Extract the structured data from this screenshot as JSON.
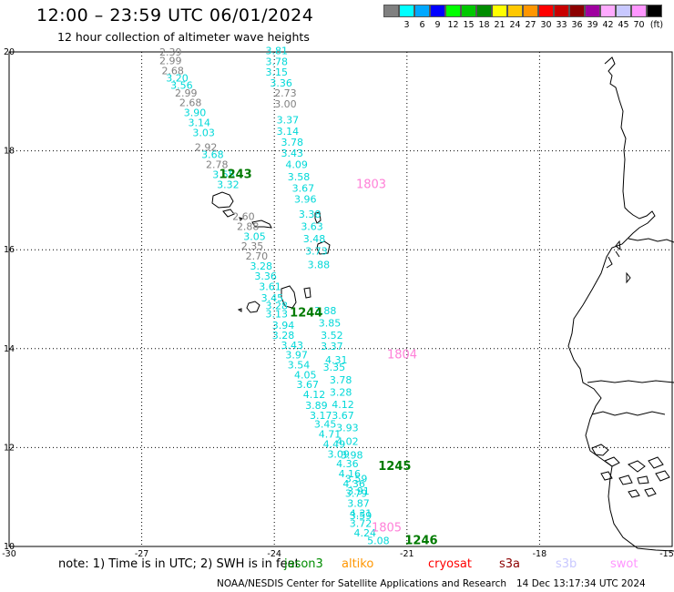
{
  "header": {
    "title": "12:00 – 23:59 UTC 06/01/2024",
    "subtitle": "12 hour collection of altimeter wave heights"
  },
  "legend": {
    "colors": [
      "#808080",
      "#00ffff",
      "#00a8ff",
      "#0000ff",
      "#00ff00",
      "#00c800",
      "#008c00",
      "#ffff00",
      "#ffc800",
      "#ff9600",
      "#ff0000",
      "#c80000",
      "#8c0000",
      "#a000a0",
      "#ffaaff",
      "#c8c8ff",
      "#ff96ff",
      "#000000"
    ],
    "labels": [
      "",
      "3",
      "6",
      "9",
      "12",
      "15",
      "18",
      "21",
      "24",
      "27",
      "30",
      "33",
      "36",
      "39",
      "42",
      "45",
      "70",
      "(ft)"
    ]
  },
  "axes": {
    "x_ticks": [
      "-30",
      "-27",
      "-24",
      "-21",
      "-18",
      "-15"
    ],
    "y_ticks": [
      "10",
      "12",
      "14",
      "16",
      "18",
      "20"
    ]
  },
  "tracks": [
    {
      "color": "#808080",
      "points": [
        {
          "lon": -26.6,
          "lat": 19.93,
          "v": "2.39"
        },
        {
          "lon": -26.6,
          "lat": 19.75,
          "v": "2.99"
        },
        {
          "lon": -26.55,
          "lat": 19.55,
          "v": "2.68"
        },
        {
          "lon": -26.25,
          "lat": 19.1,
          "v": "2.99"
        },
        {
          "lon": -26.15,
          "lat": 18.9,
          "v": "2.68"
        },
        {
          "lon": -25.8,
          "lat": 18.0,
          "v": "2.92"
        },
        {
          "lon": -25.55,
          "lat": 17.65,
          "v": "2.78"
        },
        {
          "lon": -24.95,
          "lat": 16.6,
          "v": "2.60"
        },
        {
          "lon": -24.85,
          "lat": 16.4,
          "v": "2.88"
        },
        {
          "lon": -24.75,
          "lat": 16.0,
          "v": "2.35"
        },
        {
          "lon": -24.65,
          "lat": 15.8,
          "v": "2.70"
        },
        {
          "lon": -24.0,
          "lat": 19.1,
          "v": "2.73"
        },
        {
          "lon": -24.0,
          "lat": 18.88,
          "v": "3.00"
        }
      ]
    },
    {
      "color": "#00d8d8",
      "points": [
        {
          "lon": -26.45,
          "lat": 19.4,
          "v": "3.20"
        },
        {
          "lon": -26.35,
          "lat": 19.25,
          "v": "3.56"
        },
        {
          "lon": -26.05,
          "lat": 18.7,
          "v": "3.90"
        },
        {
          "lon": -25.95,
          "lat": 18.5,
          "v": "3.14"
        },
        {
          "lon": -25.85,
          "lat": 18.3,
          "v": "3.03"
        },
        {
          "lon": -25.65,
          "lat": 17.85,
          "v": "3.68"
        },
        {
          "lon": -25.4,
          "lat": 17.45,
          "v": "3.55"
        },
        {
          "lon": -25.3,
          "lat": 17.25,
          "v": "3.32"
        },
        {
          "lon": -24.7,
          "lat": 16.2,
          "v": "3.05"
        },
        {
          "lon": -24.55,
          "lat": 15.6,
          "v": "3.28"
        },
        {
          "lon": -24.45,
          "lat": 15.4,
          "v": "3.36"
        },
        {
          "lon": -24.35,
          "lat": 15.18,
          "v": "3.61"
        },
        {
          "lon": -24.3,
          "lat": 14.95,
          "v": "3.45"
        },
        {
          "lon": -24.2,
          "lat": 14.8,
          "v": "3.28"
        },
        {
          "lon": -24.2,
          "lat": 14.63,
          "v": "3.13"
        },
        {
          "lon": -24.05,
          "lat": 14.4,
          "v": "3.94"
        },
        {
          "lon": -24.05,
          "lat": 14.2,
          "v": "3.28"
        },
        {
          "lon": -23.85,
          "lat": 14.0,
          "v": "3.43"
        },
        {
          "lon": -23.75,
          "lat": 13.8,
          "v": "3.97"
        },
        {
          "lon": -23.7,
          "lat": 13.6,
          "v": "3.54"
        },
        {
          "lon": -23.55,
          "lat": 13.4,
          "v": "4.05"
        },
        {
          "lon": -23.5,
          "lat": 13.2,
          "v": "3.67"
        },
        {
          "lon": -23.35,
          "lat": 13.0,
          "v": "4.12"
        },
        {
          "lon": -23.3,
          "lat": 12.78,
          "v": "3.89"
        },
        {
          "lon": -23.2,
          "lat": 12.58,
          "v": "3.17"
        },
        {
          "lon": -23.1,
          "lat": 12.4,
          "v": "3.45"
        },
        {
          "lon": -23.0,
          "lat": 12.2,
          "v": "4.71"
        },
        {
          "lon": -22.9,
          "lat": 12.0,
          "v": "4.49"
        },
        {
          "lon": -22.8,
          "lat": 11.8,
          "v": "3.09"
        },
        {
          "lon": -22.6,
          "lat": 11.6,
          "v": "4.36"
        },
        {
          "lon": -22.55,
          "lat": 11.4,
          "v": "4.16"
        },
        {
          "lon": -22.45,
          "lat": 11.2,
          "v": "4.36"
        },
        {
          "lon": -22.4,
          "lat": 11.0,
          "v": "3.79"
        },
        {
          "lon": -22.35,
          "lat": 10.8,
          "v": "3.87"
        },
        {
          "lon": -22.3,
          "lat": 10.6,
          "v": "4.31"
        },
        {
          "lon": -22.3,
          "lat": 10.4,
          "v": "3.72"
        },
        {
          "lon": -22.2,
          "lat": 10.2,
          "v": "4.24"
        },
        {
          "lon": -21.9,
          "lat": 10.05,
          "v": "5.08"
        },
        {
          "lon": -24.2,
          "lat": 19.95,
          "v": "3.81"
        },
        {
          "lon": -24.2,
          "lat": 19.73,
          "v": "3.78"
        },
        {
          "lon": -24.2,
          "lat": 19.52,
          "v": "3.15"
        },
        {
          "lon": -24.1,
          "lat": 19.3,
          "v": "3.36"
        },
        {
          "lon": -23.95,
          "lat": 18.55,
          "v": "3.37"
        },
        {
          "lon": -23.95,
          "lat": 18.32,
          "v": "3.14"
        },
        {
          "lon": -23.85,
          "lat": 18.1,
          "v": "3.78"
        },
        {
          "lon": -23.85,
          "lat": 17.88,
          "v": "3.43"
        },
        {
          "lon": -23.75,
          "lat": 17.65,
          "v": "4.09"
        },
        {
          "lon": -23.7,
          "lat": 17.4,
          "v": "3.58"
        },
        {
          "lon": -23.6,
          "lat": 17.17,
          "v": "3.67"
        },
        {
          "lon": -23.55,
          "lat": 16.95,
          "v": "3.96"
        },
        {
          "lon": -23.45,
          "lat": 16.65,
          "v": "3.38"
        },
        {
          "lon": -23.4,
          "lat": 16.4,
          "v": "3.63"
        },
        {
          "lon": -23.35,
          "lat": 16.15,
          "v": "3.48"
        },
        {
          "lon": -23.3,
          "lat": 15.9,
          "v": "3.73"
        },
        {
          "lon": -23.25,
          "lat": 15.63,
          "v": "3.88"
        },
        {
          "lon": -23.1,
          "lat": 14.7,
          "v": "3.88"
        },
        {
          "lon": -23.0,
          "lat": 14.45,
          "v": "3.85"
        },
        {
          "lon": -22.95,
          "lat": 14.2,
          "v": "3.52"
        },
        {
          "lon": -22.95,
          "lat": 13.98,
          "v": "3.37"
        },
        {
          "lon": -22.85,
          "lat": 13.7,
          "v": "4.31"
        },
        {
          "lon": -22.9,
          "lat": 13.55,
          "v": "3.35"
        },
        {
          "lon": -22.75,
          "lat": 13.3,
          "v": "3.78"
        },
        {
          "lon": -22.75,
          "lat": 13.05,
          "v": "3.28"
        },
        {
          "lon": -22.7,
          "lat": 12.8,
          "v": "4.12"
        },
        {
          "lon": -22.7,
          "lat": 12.58,
          "v": "3.67"
        },
        {
          "lon": -22.6,
          "lat": 12.33,
          "v": "3.93"
        },
        {
          "lon": -22.6,
          "lat": 12.05,
          "v": "4.02"
        },
        {
          "lon": -22.5,
          "lat": 11.78,
          "v": "3.98"
        },
        {
          "lon": -22.4,
          "lat": 11.3,
          "v": "3.59"
        },
        {
          "lon": -22.35,
          "lat": 11.05,
          "v": "3.91"
        },
        {
          "lon": -22.3,
          "lat": 10.55,
          "v": "3.59"
        }
      ]
    }
  ],
  "time_labels": [
    {
      "text": "1243",
      "color": "#007a00",
      "lon": -25.25,
      "lat": 17.45
    },
    {
      "text": "1244",
      "color": "#007a00",
      "lon": -23.65,
      "lat": 14.65
    },
    {
      "text": "1245",
      "color": "#007a00",
      "lon": -21.65,
      "lat": 11.55
    },
    {
      "text": "1246",
      "color": "#007a00",
      "lon": -21.05,
      "lat": 10.05
    },
    {
      "text": "1803",
      "color": "#ff80d8",
      "lon": -22.15,
      "lat": 17.25
    },
    {
      "text": "1804",
      "color": "#ff80d8",
      "lon": -21.45,
      "lat": 13.8
    },
    {
      "text": "1805",
      "color": "#ff80d8",
      "lon": -21.8,
      "lat": 10.3
    }
  ],
  "footer": {
    "note": "note:  1) Time is in UTC; 2) SWH is in feet",
    "satellites": [
      {
        "name": "jason3",
        "color": "#008c00"
      },
      {
        "name": "altiko",
        "color": "#ff9600"
      },
      {
        "name": "cryosat",
        "color": "#ff0000"
      },
      {
        "name": "s3a",
        "color": "#8c0000"
      },
      {
        "name": "s3b",
        "color": "#c8c8ff"
      },
      {
        "name": "swot",
        "color": "#ff96ff"
      }
    ],
    "credit": "NOAA/NESDIS Center for Satellite Applications and Research",
    "timestamp": "14 Dec 13:17:34 UTC 2024"
  }
}
